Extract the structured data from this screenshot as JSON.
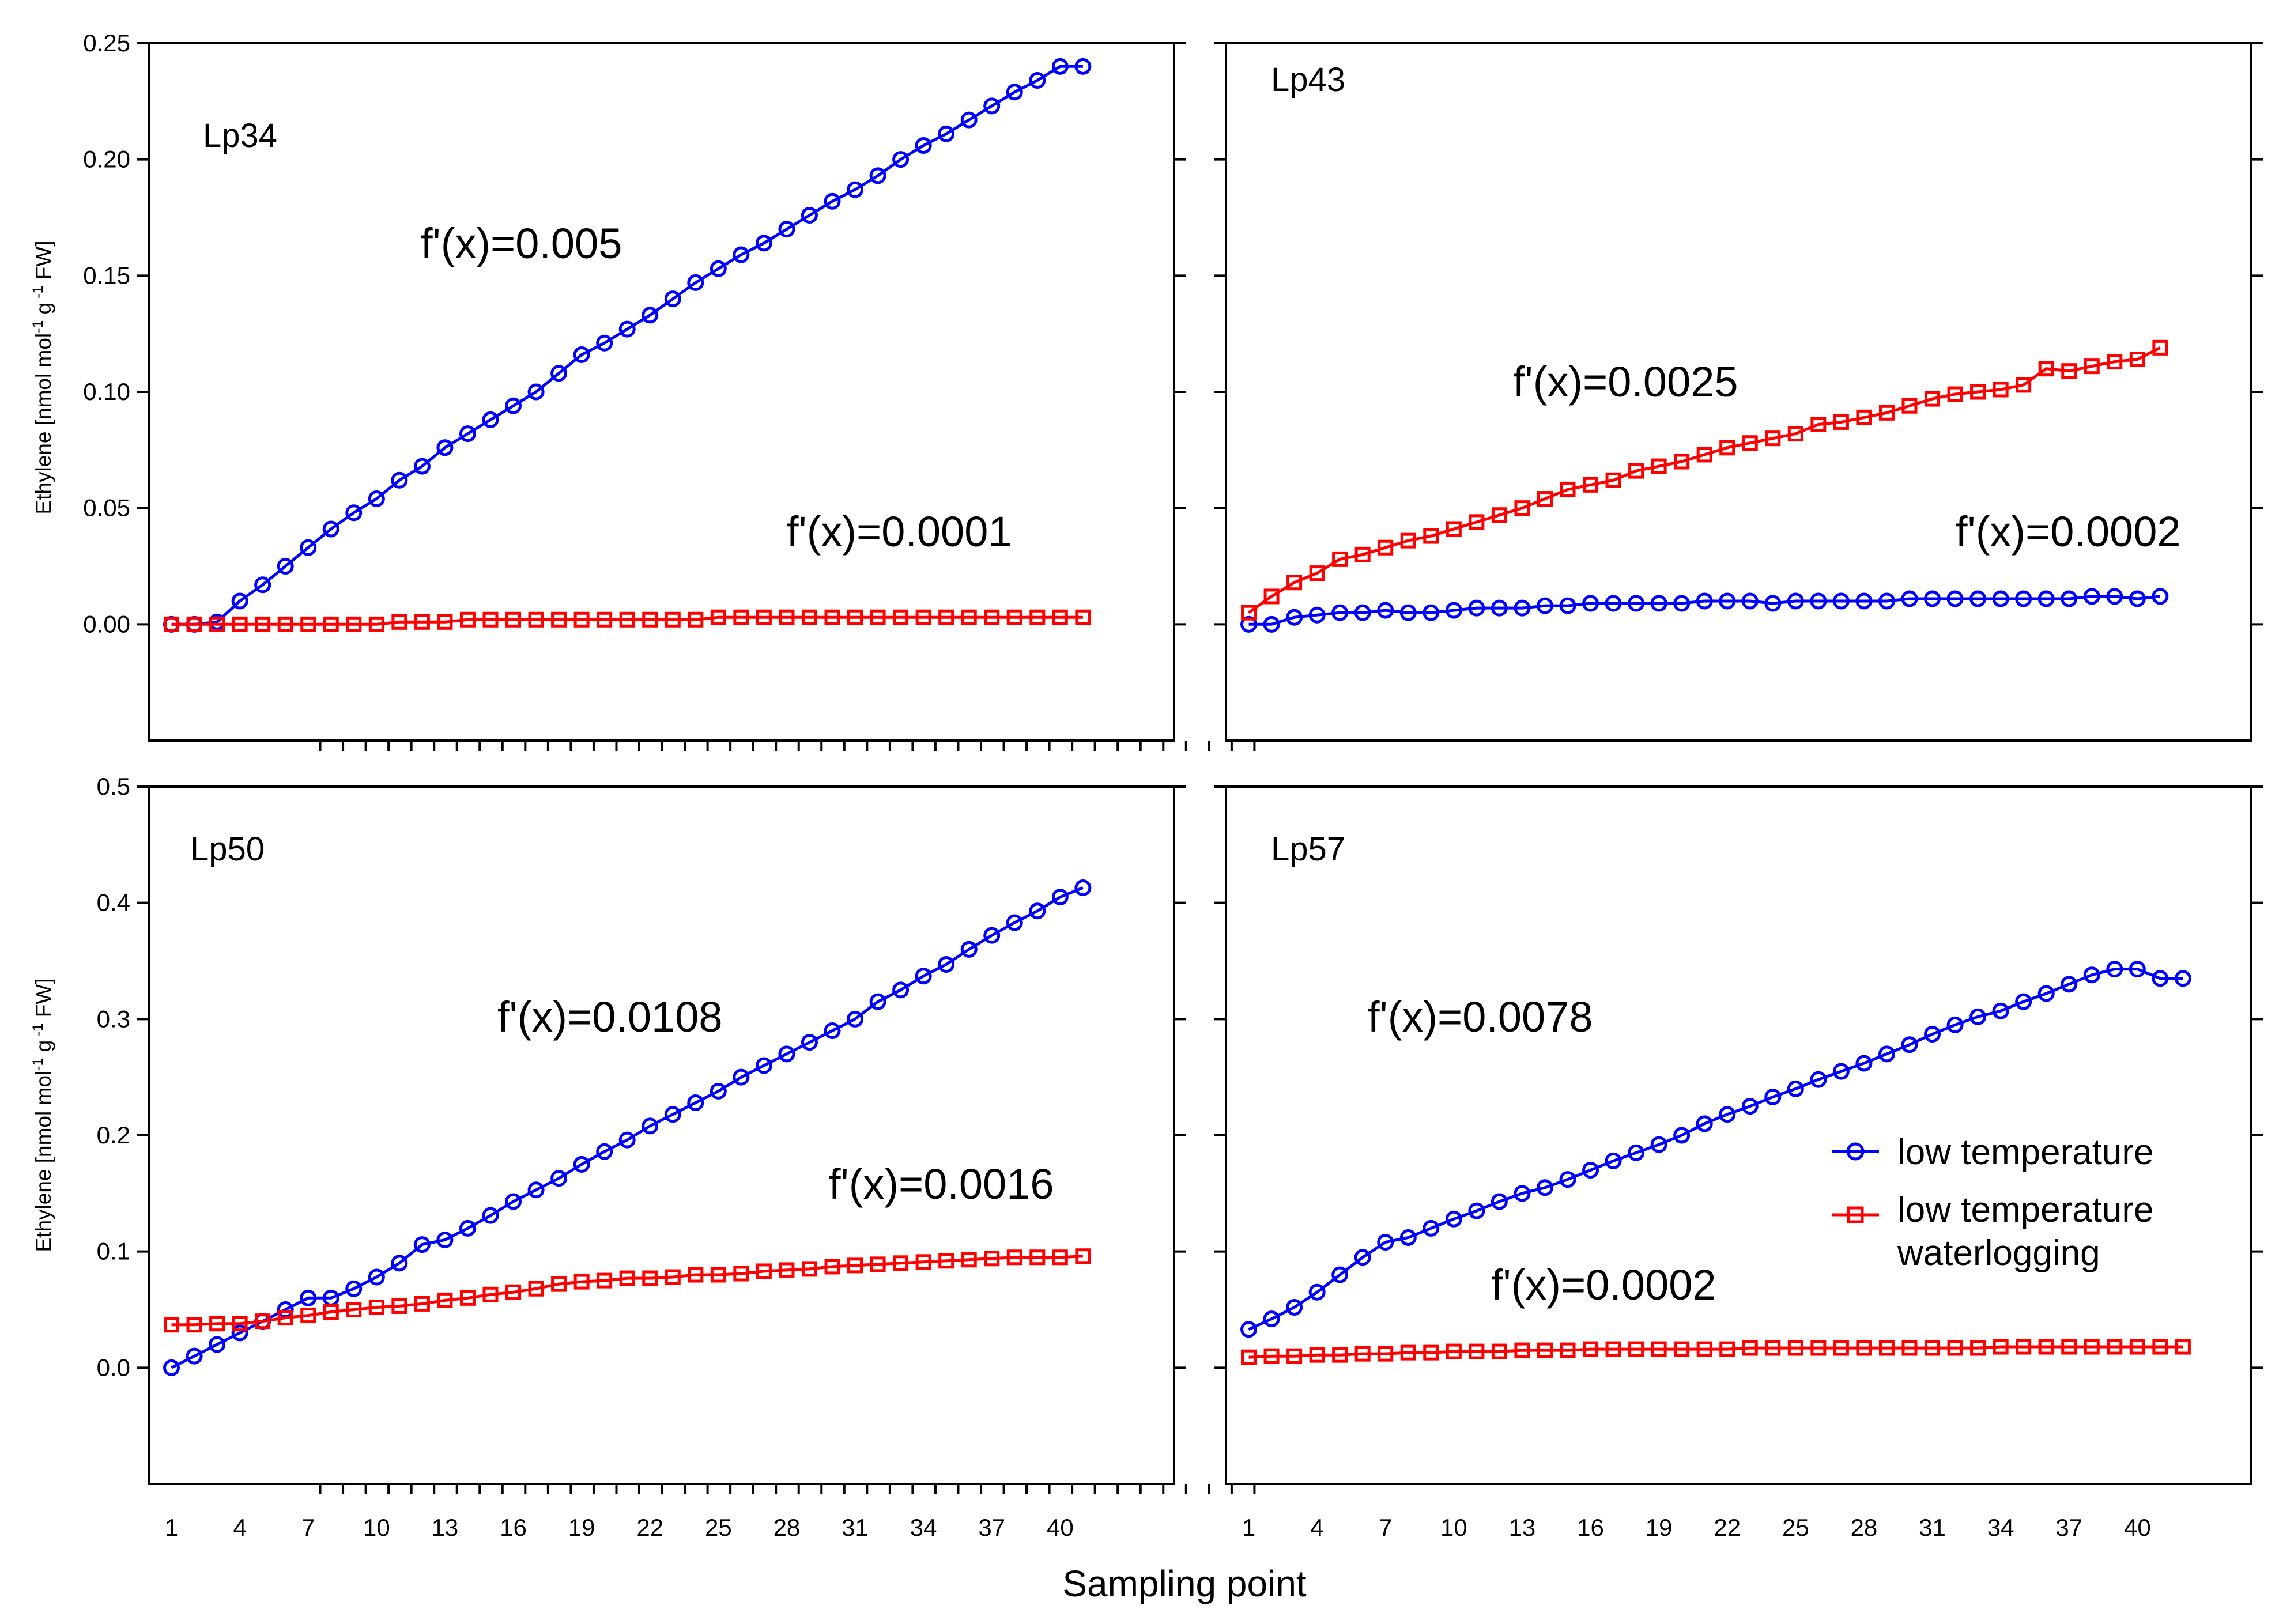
{
  "figure": {
    "xlabel": "Sampling point",
    "ylabel_main": "Ethylene [nmol mol",
    "ylabel_sup1": "-1",
    "ylabel_mid": " g",
    "ylabel_sup2": " -1",
    "ylabel_end": " FW]",
    "legend": {
      "series1": "low temperature",
      "series2_line1": "low temperature",
      "series2_line2": "waterlogging"
    },
    "colors": {
      "series1": "#0000ff",
      "series2": "#ff0000"
    }
  },
  "chart_data": [
    {
      "type": "line",
      "panel": "Lp34",
      "title": "Lp34",
      "xlabel": "Sampling point",
      "ylabel": "Ethylene [nmol mol-1 g-1 FW]",
      "xlim": [
        0,
        45
      ],
      "ylim": [
        -0.05,
        0.25
      ],
      "yticks": [
        "0.25",
        "0.20",
        "0.15",
        "0.10",
        "0.05",
        "0.00"
      ],
      "ytick_values": [
        0.25,
        0.2,
        0.15,
        0.1,
        0.05,
        0.0
      ],
      "xticks": [],
      "series": [
        {
          "name": "low temperature",
          "marker": "circle",
          "color": "#0000ff",
          "values": [
            0.0,
            0.0,
            0.001,
            0.01,
            0.017,
            0.025,
            0.033,
            0.041,
            0.048,
            0.054,
            0.062,
            0.068,
            0.076,
            0.082,
            0.088,
            0.094,
            0.1,
            0.108,
            0.116,
            0.121,
            0.127,
            0.133,
            0.14,
            0.147,
            0.153,
            0.159,
            0.164,
            0.17,
            0.176,
            0.182,
            0.187,
            0.193,
            0.2,
            0.206,
            0.211,
            0.217,
            0.223,
            0.229,
            0.234,
            0.24,
            0.24
          ]
        },
        {
          "name": "low temperature waterlogging",
          "marker": "square",
          "color": "#ff0000",
          "values": [
            0.0,
            0.0,
            0.0,
            0.0,
            0.0,
            0.0,
            0.0,
            0.0,
            0.0,
            0.0,
            0.001,
            0.001,
            0.001,
            0.002,
            0.002,
            0.002,
            0.002,
            0.002,
            0.002,
            0.002,
            0.002,
            0.002,
            0.002,
            0.002,
            0.003,
            0.003,
            0.003,
            0.003,
            0.003,
            0.003,
            0.003,
            0.003,
            0.003,
            0.003,
            0.003,
            0.003,
            0.003,
            0.003,
            0.003,
            0.003,
            0.003
          ]
        }
      ],
      "annotations": [
        "f'(x)=0.005",
        "f'(x)=0.0001"
      ]
    },
    {
      "type": "line",
      "panel": "Lp43",
      "title": "Lp43",
      "xlabel": "Sampling point",
      "ylabel": "",
      "xlim": [
        0,
        45
      ],
      "ylim": [
        -0.05,
        0.25
      ],
      "yticks": [],
      "ytick_values": [
        0.25,
        0.2,
        0.15,
        0.1,
        0.05,
        0.0
      ],
      "xticks": [],
      "series": [
        {
          "name": "low temperature",
          "marker": "circle",
          "color": "#0000ff",
          "values": [
            0.0,
            0.0,
            0.003,
            0.004,
            0.005,
            0.005,
            0.006,
            0.005,
            0.005,
            0.006,
            0.007,
            0.007,
            0.007,
            0.008,
            0.008,
            0.009,
            0.009,
            0.009,
            0.009,
            0.009,
            0.01,
            0.01,
            0.01,
            0.009,
            0.01,
            0.01,
            0.01,
            0.01,
            0.01,
            0.011,
            0.011,
            0.011,
            0.011,
            0.011,
            0.011,
            0.011,
            0.011,
            0.012,
            0.012,
            0.011,
            0.012
          ]
        },
        {
          "name": "low temperature waterlogging",
          "marker": "square",
          "color": "#ff0000",
          "values": [
            0.005,
            0.012,
            0.018,
            0.022,
            0.028,
            0.03,
            0.033,
            0.036,
            0.038,
            0.041,
            0.044,
            0.047,
            0.05,
            0.054,
            0.058,
            0.06,
            0.062,
            0.066,
            0.068,
            0.07,
            0.073,
            0.076,
            0.078,
            0.08,
            0.082,
            0.086,
            0.087,
            0.089,
            0.091,
            0.094,
            0.097,
            0.099,
            0.1,
            0.101,
            0.103,
            0.11,
            0.109,
            0.111,
            0.113,
            0.114,
            0.119
          ]
        }
      ],
      "annotations": [
        "f'(x)=0.0025",
        "f'(x)=0.0002"
      ]
    },
    {
      "type": "line",
      "panel": "Lp50",
      "title": "Lp50",
      "xlabel": "Sampling point",
      "ylabel": "Ethylene [nmol mol-1 g-1 FW]",
      "xlim": [
        0,
        45
      ],
      "ylim": [
        -0.1,
        0.5
      ],
      "yticks": [
        "0.5",
        "0.4",
        "0.3",
        "0.2",
        "0.1",
        "0.0"
      ],
      "ytick_values": [
        0.5,
        0.4,
        0.3,
        0.2,
        0.1,
        0.0
      ],
      "xticks": [
        "1",
        "4",
        "7",
        "10",
        "13",
        "16",
        "19",
        "22",
        "25",
        "28",
        "31",
        "34",
        "37",
        "40"
      ],
      "series": [
        {
          "name": "low temperature",
          "marker": "circle",
          "color": "#0000ff",
          "values": [
            0.0,
            0.01,
            0.02,
            0.03,
            0.04,
            0.05,
            0.06,
            0.06,
            0.068,
            0.078,
            0.09,
            0.106,
            0.11,
            0.12,
            0.131,
            0.143,
            0.153,
            0.163,
            0.175,
            0.186,
            0.196,
            0.208,
            0.218,
            0.228,
            0.238,
            0.25,
            0.26,
            0.27,
            0.28,
            0.29,
            0.3,
            0.315,
            0.325,
            0.337,
            0.347,
            0.36,
            0.372,
            0.383,
            0.393,
            0.405,
            0.413
          ]
        },
        {
          "name": "low temperature waterlogging",
          "marker": "square",
          "color": "#ff0000",
          "values": [
            0.037,
            0.037,
            0.038,
            0.038,
            0.04,
            0.043,
            0.045,
            0.048,
            0.05,
            0.052,
            0.053,
            0.055,
            0.058,
            0.06,
            0.063,
            0.065,
            0.068,
            0.072,
            0.074,
            0.075,
            0.077,
            0.077,
            0.078,
            0.08,
            0.08,
            0.081,
            0.083,
            0.084,
            0.085,
            0.087,
            0.088,
            0.089,
            0.09,
            0.091,
            0.092,
            0.093,
            0.094,
            0.095,
            0.095,
            0.095,
            0.096
          ]
        }
      ],
      "annotations": [
        "f'(x)=0.0108",
        "f'(x)=0.0016"
      ]
    },
    {
      "type": "line",
      "panel": "Lp57",
      "title": "Lp57",
      "xlabel": "Sampling point",
      "ylabel": "",
      "xlim": [
        0,
        45
      ],
      "ylim": [
        -0.1,
        0.5
      ],
      "yticks": [],
      "ytick_values": [
        0.5,
        0.4,
        0.3,
        0.2,
        0.1,
        0.0
      ],
      "xticks": [
        "1",
        "4",
        "7",
        "10",
        "13",
        "16",
        "19",
        "22",
        "25",
        "28",
        "31",
        "34",
        "37",
        "40"
      ],
      "series": [
        {
          "name": "low temperature",
          "marker": "circle",
          "color": "#0000ff",
          "values": [
            0.033,
            0.042,
            0.052,
            0.065,
            0.08,
            0.095,
            0.108,
            0.112,
            0.12,
            0.128,
            0.135,
            0.143,
            0.15,
            0.155,
            0.162,
            0.17,
            0.178,
            0.185,
            0.192,
            0.2,
            0.21,
            0.218,
            0.225,
            0.233,
            0.24,
            0.248,
            0.255,
            0.262,
            0.27,
            0.278,
            0.287,
            0.295,
            0.302,
            0.307,
            0.315,
            0.322,
            0.33,
            0.338,
            0.343,
            0.343,
            0.335,
            0.335
          ]
        },
        {
          "name": "low temperature waterlogging",
          "marker": "square",
          "color": "#ff0000",
          "values": [
            0.009,
            0.01,
            0.01,
            0.011,
            0.011,
            0.012,
            0.012,
            0.013,
            0.013,
            0.014,
            0.014,
            0.014,
            0.015,
            0.015,
            0.015,
            0.016,
            0.016,
            0.016,
            0.016,
            0.016,
            0.016,
            0.016,
            0.017,
            0.017,
            0.017,
            0.017,
            0.017,
            0.017,
            0.017,
            0.017,
            0.017,
            0.017,
            0.017,
            0.018,
            0.018,
            0.018,
            0.018,
            0.018,
            0.018,
            0.018,
            0.018,
            0.018
          ]
        }
      ],
      "annotations": [
        "f'(x)=0.0078",
        "f'(x)=0.0002"
      ]
    }
  ]
}
